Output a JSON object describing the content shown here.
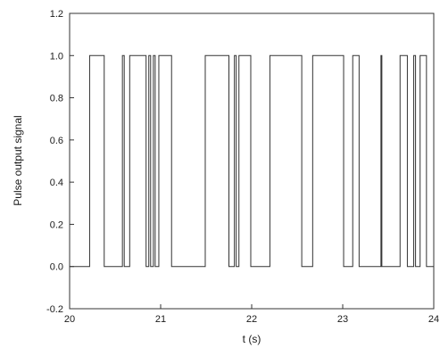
{
  "chart_data": {
    "type": "line",
    "title": "",
    "xlabel": "t (s)",
    "ylabel": "Pulse output signal",
    "xlim": [
      20,
      24
    ],
    "ylim": [
      -0.2,
      1.2
    ],
    "x_ticks": [
      20,
      21,
      22,
      23,
      24
    ],
    "x_tick_labels": [
      "20",
      "21",
      "22",
      "23",
      "24"
    ],
    "y_ticks": [
      -0.2,
      0.0,
      0.2,
      0.4,
      0.6,
      0.8,
      1.0,
      1.2
    ],
    "y_tick_labels": [
      "-0.2",
      "0.0",
      "0.2",
      "0.4",
      "0.6",
      "0.8",
      "1.0",
      "1.2"
    ],
    "grid": false,
    "legend": "none",
    "series": [
      {
        "color": "#333333",
        "style": "step",
        "pulses_high": [
          [
            20.22,
            20.38
          ],
          [
            20.58,
            20.6
          ],
          [
            20.66,
            20.84
          ],
          [
            20.87,
            20.89
          ],
          [
            20.92,
            20.94
          ],
          [
            20.98,
            21.12
          ],
          [
            21.49,
            21.75
          ],
          [
            21.81,
            21.83
          ],
          [
            21.86,
            21.99
          ],
          [
            22.2,
            22.55
          ],
          [
            22.67,
            23.01
          ],
          [
            23.11,
            23.18
          ],
          [
            23.42,
            23.43
          ],
          [
            23.63,
            23.71
          ],
          [
            23.78,
            23.8
          ],
          [
            23.85,
            23.92
          ]
        ],
        "low_value": 0.0,
        "high_value": 1.0
      }
    ]
  }
}
